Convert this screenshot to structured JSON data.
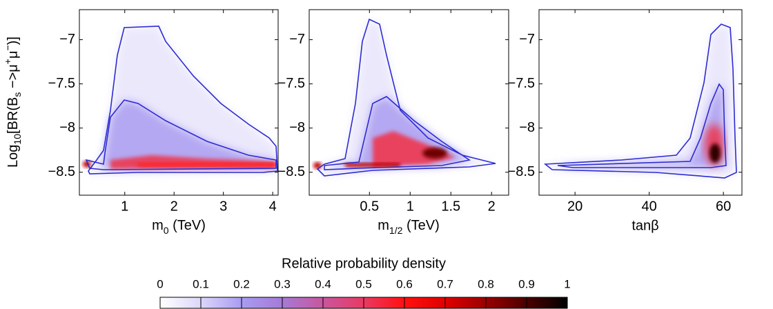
{
  "chart_data": [
    {
      "type": "density",
      "xlabel": [
        "m",
        "0",
        " (TeV)"
      ],
      "ylabel": [
        "Log",
        "10",
        "[BR(B",
        "s",
        " −>μ",
        "+",
        "μ",
        "−",
        ")]"
      ],
      "xlim": [
        0.08,
        4.11
      ],
      "xticks": [
        1,
        2,
        3,
        4
      ],
      "ylim": [
        -8.76,
        -6.66
      ],
      "yticks": [
        {
          "value": -7,
          "label": "−7"
        },
        {
          "value": -7.5,
          "label": "−7.5"
        },
        {
          "value": -8,
          "label": "−8"
        },
        {
          "value": -8.5,
          "label": "−8.5"
        }
      ],
      "contour_color": "#2b2bd0"
    },
    {
      "type": "density",
      "xlabel": [
        "m",
        "1/2",
        " (TeV)"
      ],
      "xlim": [
        -0.24,
        2.21
      ],
      "xticks": [
        0.5,
        1,
        1.5,
        2
      ],
      "ylim": [
        -8.76,
        -6.66
      ],
      "yticks": [
        {
          "value": -7,
          "label": "−7"
        },
        {
          "value": -7.5,
          "label": "−7.5"
        },
        {
          "value": -8,
          "label": "−8"
        },
        {
          "value": -8.5,
          "label": "−8.5"
        }
      ],
      "contour_color": "#2b2bd0"
    },
    {
      "type": "density",
      "xlabel": [
        "tanβ"
      ],
      "xlim": [
        10.3,
        65
      ],
      "xticks": [
        20,
        40,
        60
      ],
      "ylim": [
        -8.76,
        -6.66
      ],
      "yticks": [
        {
          "value": -7,
          "label": "−7"
        },
        {
          "value": -7.5,
          "label": "−7.5"
        },
        {
          "value": -8,
          "label": "−8"
        },
        {
          "value": -8.5,
          "label": "−8.5"
        }
      ],
      "contour_color": "#2b2bd0"
    },
    {
      "type": "colorbar",
      "title": "Relative probability density",
      "xlim": [
        0,
        1
      ],
      "xticks": [
        0,
        0.1,
        0.2,
        0.3,
        0.4,
        0.5,
        0.6,
        0.7,
        0.8,
        0.9,
        1
      ],
      "colors": [
        "#ffffff",
        "#dcd6fa",
        "#a99cf2",
        "#a57ad6",
        "#c9569e",
        "#e93a62",
        "#ff1010",
        "#e00000",
        "#9a0000",
        "#4a0000",
        "#000000"
      ]
    }
  ]
}
